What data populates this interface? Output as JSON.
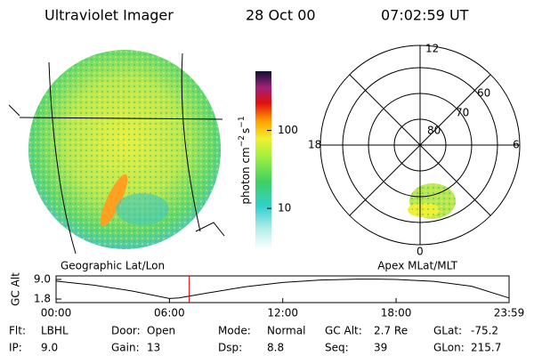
{
  "header": {
    "instrument": "Ultraviolet Imager",
    "date": "28 Oct 00",
    "time": "07:02:59 UT"
  },
  "colorbar": {
    "label": "photon cm",
    "exp1": "−2",
    "unit2": "s",
    "exp2": "−1",
    "scale": "log",
    "ylim": [
      3,
      575
    ],
    "yticks": [
      10,
      100
    ]
  },
  "polar": {
    "mlt_labels": [
      "12",
      "6",
      "0",
      "18"
    ],
    "lat_labels": [
      "60",
      "70",
      "80"
    ]
  },
  "altitude_plot": {
    "left_label": "Geographic Lat/Lon",
    "right_label": "Apex MLat/MLT",
    "ylabel": "GC Alt",
    "x": [
      0,
      2,
      4,
      6,
      6.5,
      8,
      10,
      12,
      14,
      16,
      17,
      18,
      20,
      22,
      23.98
    ],
    "values": [
      8.4,
      6.9,
      4.8,
      2.0,
      2.2,
      4.0,
      6.3,
      7.9,
      8.8,
      9.1,
      9.1,
      9.0,
      8.3,
      6.5,
      2.2
    ],
    "marker_x": 7.05,
    "marker_color": "#e00000",
    "xlim": [
      0,
      23.98
    ],
    "ylim": [
      0.5,
      10.3
    ],
    "xticks": [
      {
        "value": 0,
        "label": "00:00"
      },
      {
        "value": 6,
        "label": "06:00"
      },
      {
        "value": 12,
        "label": "12:00"
      },
      {
        "value": 18,
        "label": "18:00"
      },
      {
        "value": 23.98,
        "label": "23:59"
      }
    ],
    "yticks": [
      {
        "value": 1.8,
        "label": "1.8"
      },
      {
        "value": 9.0,
        "label": "9.0"
      }
    ]
  },
  "info": [
    {
      "label": "Flt:",
      "value": "LBHL"
    },
    {
      "label": "IP:",
      "value": "9.0"
    },
    {
      "label": "Door:",
      "value": "Open"
    },
    {
      "label": "Gain:",
      "value": "13"
    },
    {
      "label": "Mode:",
      "value": "Normal"
    },
    {
      "label": "Dsp:",
      "value": "8.8"
    },
    {
      "label": "GC Alt:",
      "value": "2.7 Re"
    },
    {
      "label": "Seq:",
      "value": "39"
    },
    {
      "label": "GLat:",
      "value": "-75.2"
    },
    {
      "label": "GLon:",
      "value": "215.7"
    }
  ]
}
